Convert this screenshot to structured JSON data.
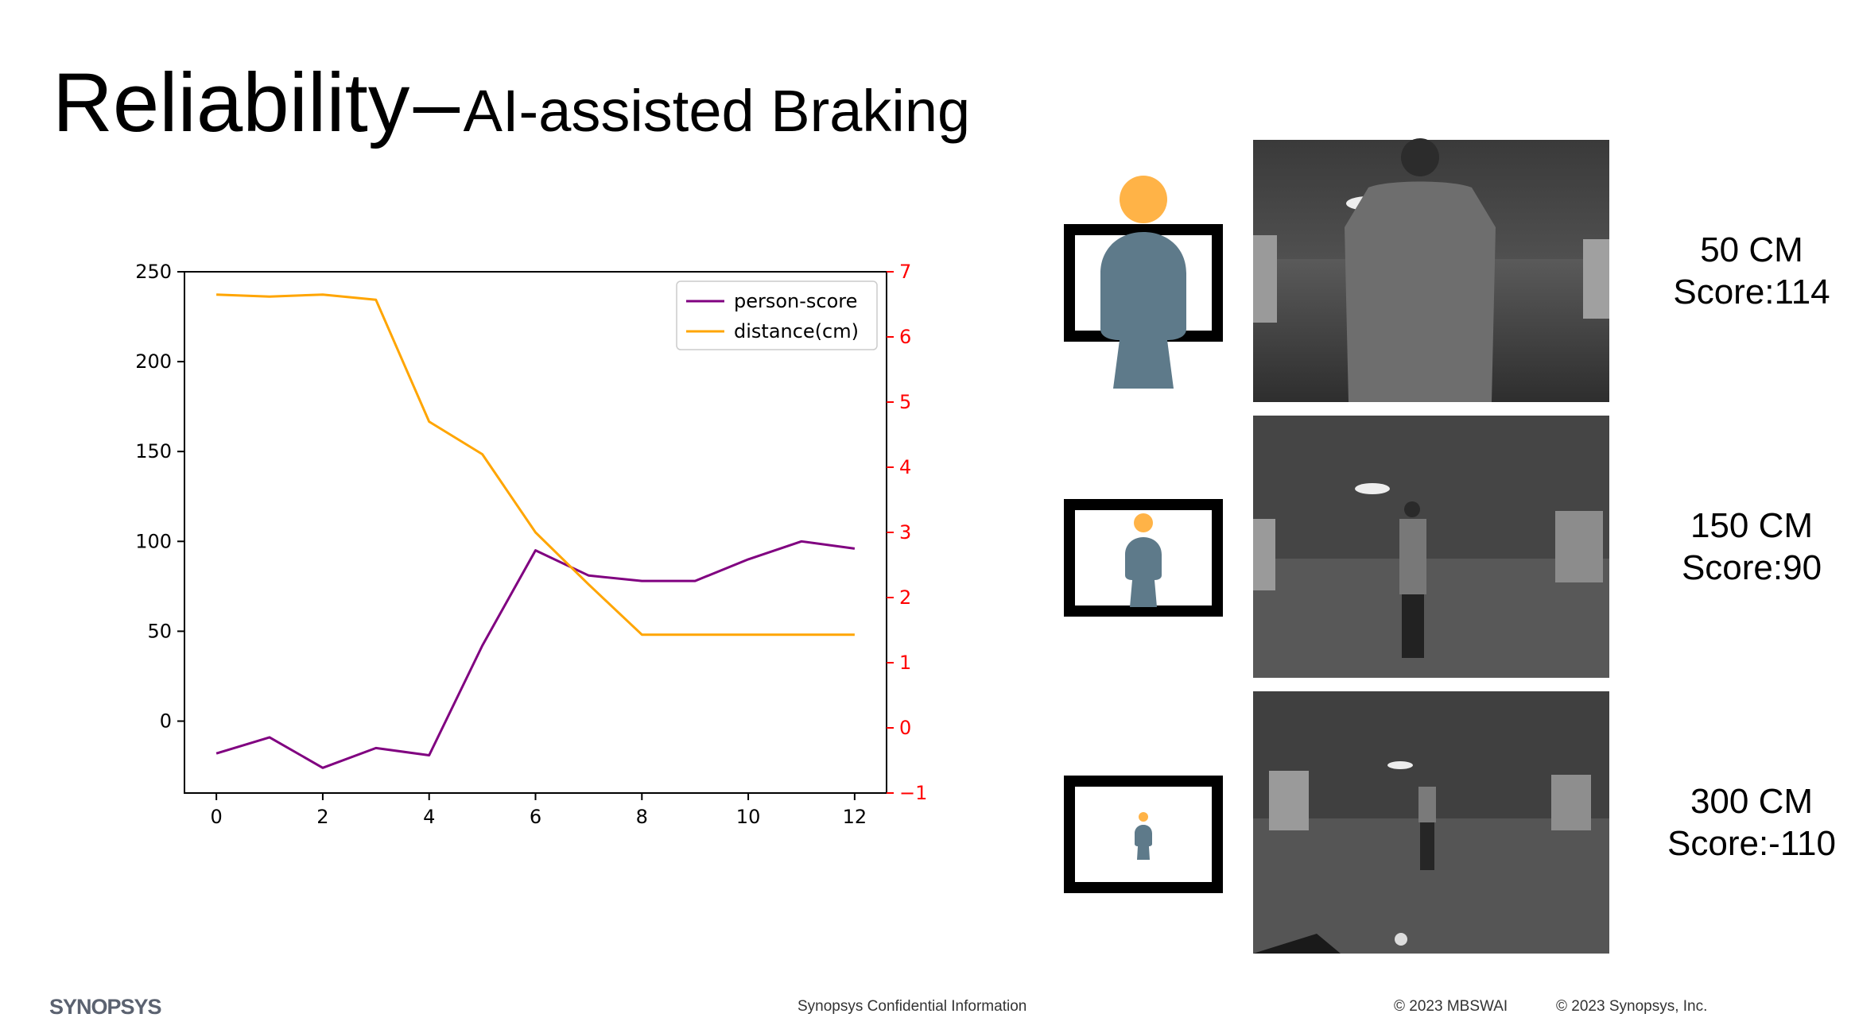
{
  "header": {
    "title_main": "Reliability",
    "title_dash": "–",
    "title_sub": "AI-assisted Braking"
  },
  "chart_data": {
    "type": "line",
    "x": [
      0,
      1,
      2,
      3,
      4,
      5,
      6,
      7,
      8,
      9,
      10,
      11,
      12
    ],
    "series": [
      {
        "name": "person-score",
        "axis": "left",
        "color": "#800080",
        "values": [
          -18,
          -9,
          -26,
          -15,
          -19,
          42,
          95,
          81,
          78,
          78,
          90,
          100,
          96
        ]
      },
      {
        "name": "distance(cm)",
        "axis": "right",
        "color": "#FFA500",
        "values": [
          6.65,
          6.62,
          6.65,
          6.57,
          4.7,
          4.2,
          3.0,
          2.2,
          1.43,
          1.43,
          1.43,
          1.43,
          1.43
        ]
      }
    ],
    "xlim": [
      -0.6,
      12.6
    ],
    "ylim_left": [
      -40,
      250
    ],
    "ylim_right": [
      -1,
      7
    ],
    "xticks": [
      0,
      2,
      4,
      6,
      8,
      10,
      12
    ],
    "yticks_left": [
      0,
      50,
      100,
      150,
      200,
      250
    ],
    "yticks_right": [
      -1,
      0,
      1,
      2,
      3,
      4,
      5,
      6,
      7
    ],
    "right_axis_color": "#FF0000",
    "legend_position": "top-right",
    "grid": false
  },
  "scenes": [
    {
      "distance": "50 CM",
      "score": "Score:114"
    },
    {
      "distance": "150 CM",
      "score": "Score:90"
    },
    {
      "distance": "300 CM",
      "score": "Score:-110"
    }
  ],
  "icons": {
    "head_color": "#FFB347",
    "body_color": "#5E7A8A"
  },
  "footer": {
    "logo": "SYNOPSYS",
    "confidential": "Synopsys Confidential Information",
    "copyright_1": "© 2023 MBSWAI",
    "copyright_2": "© 2023 Synopsys, Inc."
  }
}
